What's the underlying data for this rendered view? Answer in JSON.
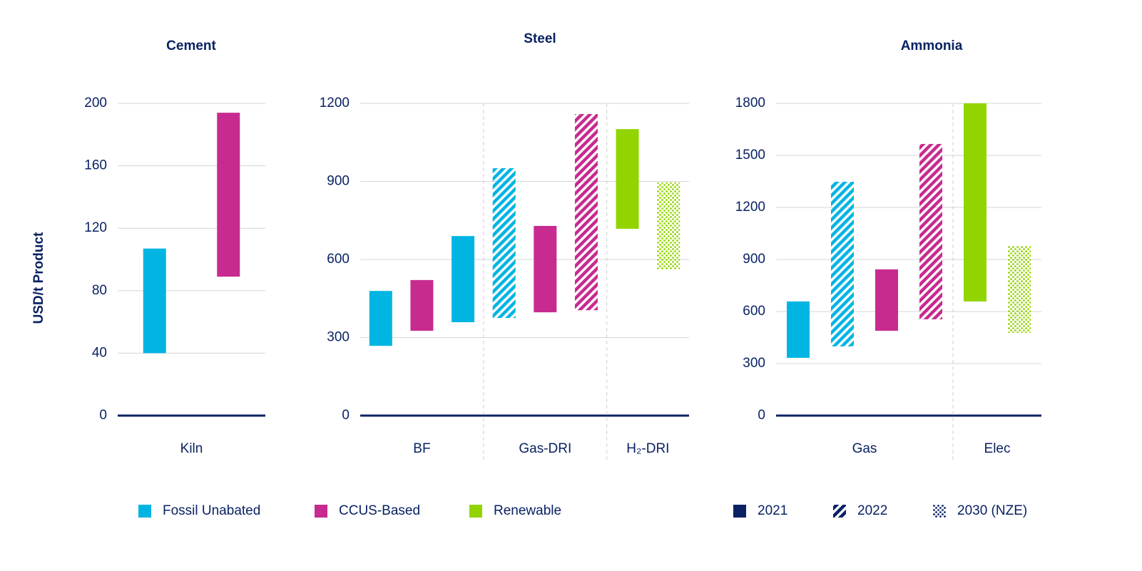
{
  "chart_data": [
    {
      "type": "floating-bar",
      "title": "Cement",
      "ylabel": "USD/t Product",
      "ylim": [
        0,
        200
      ],
      "yticks": [
        0,
        40,
        80,
        120,
        160,
        200
      ],
      "grid": true,
      "groups": [
        {
          "label": "Kiln",
          "bars": [
            {
              "low": 40,
              "high": 107,
              "color": "#00b5e2",
              "pattern": "solid"
            },
            {
              "low": 89,
              "high": 194,
              "color": "#c72b8f",
              "pattern": "solid"
            }
          ]
        }
      ]
    },
    {
      "type": "floating-bar",
      "title": "Steel",
      "ylim": [
        0,
        1200
      ],
      "yticks": [
        0,
        300,
        600,
        900,
        1200
      ],
      "grid": true,
      "groups": [
        {
          "label": "BF",
          "bars": [
            {
              "low": 268,
              "high": 479,
              "color": "#00b5e2",
              "pattern": "solid"
            },
            {
              "low": 326,
              "high": 521,
              "color": "#c72b8f",
              "pattern": "solid"
            },
            {
              "low": 359,
              "high": 690,
              "color": "#00b5e2",
              "pattern": "solid"
            }
          ]
        },
        {
          "label": "Gas-DRI",
          "bars": [
            {
              "low": 375,
              "high": 951,
              "color": "#00b5e2",
              "pattern": "hatch"
            },
            {
              "low": 397,
              "high": 729,
              "color": "#c72b8f",
              "pattern": "solid"
            },
            {
              "low": 405,
              "high": 1159,
              "color": "#c72b8f",
              "pattern": "hatch"
            }
          ]
        },
        {
          "label": "H₂-DRI",
          "bars": [
            {
              "low": 718,
              "high": 1101,
              "color": "#92d400",
              "pattern": "solid"
            },
            {
              "low": 562,
              "high": 896,
              "color": "#92d400",
              "pattern": "dots"
            }
          ]
        }
      ]
    },
    {
      "type": "floating-bar",
      "title": "Ammonia",
      "ylim": [
        0,
        1800
      ],
      "yticks": [
        0,
        300,
        600,
        900,
        1200,
        1500,
        1800
      ],
      "grid": true,
      "groups": [
        {
          "label": "Gas",
          "bars": [
            {
              "low": 333,
              "high": 658,
              "color": "#00b5e2",
              "pattern": "solid"
            },
            {
              "low": 399,
              "high": 1348,
              "color": "#00b5e2",
              "pattern": "hatch"
            },
            {
              "low": 489,
              "high": 843,
              "color": "#c72b8f",
              "pattern": "solid"
            },
            {
              "low": 555,
              "high": 1566,
              "color": "#c72b8f",
              "pattern": "hatch"
            }
          ]
        },
        {
          "label": "Elec",
          "bars": [
            {
              "low": 658,
              "high": 1800,
              "color": "#92d400",
              "pattern": "solid"
            },
            {
              "low": 477,
              "high": 978,
              "color": "#92d400",
              "pattern": "dots"
            }
          ]
        }
      ]
    }
  ],
  "legend": {
    "colors": [
      {
        "name": "Fossil Unabated",
        "color": "#00b5e2"
      },
      {
        "name": "CCUS-Based",
        "color": "#c72b8f"
      },
      {
        "name": "Renewable",
        "color": "#92d400"
      }
    ],
    "patterns": [
      {
        "name": "2021",
        "pattern": "solid"
      },
      {
        "name": "2022",
        "pattern": "hatch"
      },
      {
        "name": "2030 (NZE)",
        "pattern": "dots"
      }
    ],
    "pattern_color": "#0a2263"
  }
}
